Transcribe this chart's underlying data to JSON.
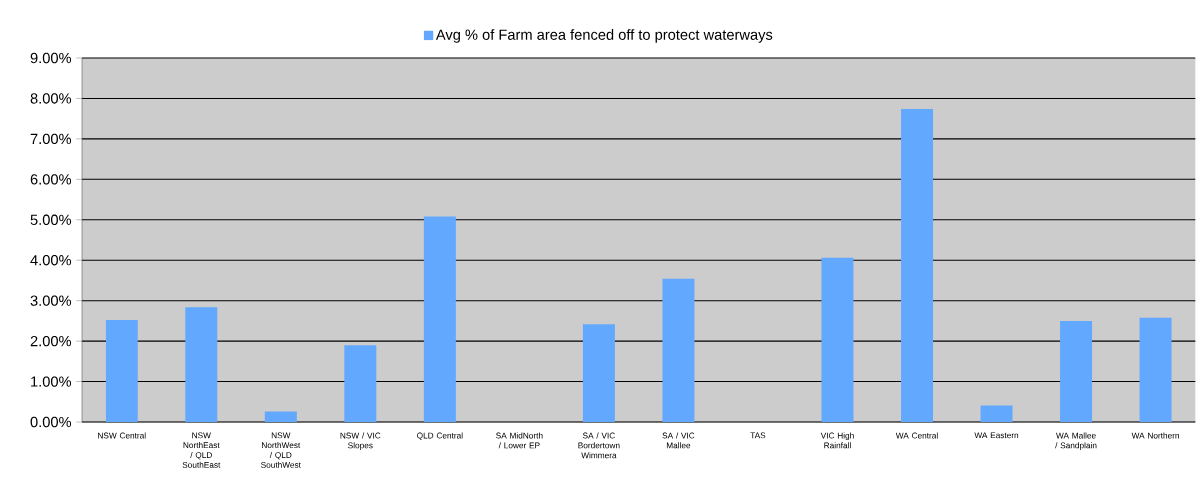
{
  "chart_data": {
    "type": "bar",
    "categories": [
      "NSW Central",
      "NSW NorthEast / QLD SouthEast",
      "NSW NorthWest / QLD SouthWest",
      "NSW / VIC Slopes",
      "QLD Central",
      "SA MidNorth / Lower EP",
      "SA / VIC Bordertown Wimmera",
      "SA / VIC Mallee",
      "TAS",
      "VIC High Rainfall",
      "WA Central",
      "WA Eastern",
      "WA Mallee / Sandplain",
      "WA Northern"
    ],
    "series": [
      {
        "name": "Avg % of Farm area fenced off to protect waterways",
        "color": "#63a8ff",
        "values": [
          2.52,
          2.84,
          0.26,
          1.9,
          5.08,
          0,
          2.42,
          3.54,
          0,
          4.06,
          7.74,
          0.41,
          2.5,
          2.58
        ]
      }
    ],
    "ylim": [
      0,
      9
    ],
    "yticks": [
      {
        "value": 0,
        "label": "0.00%"
      },
      {
        "value": 1,
        "label": "1.00%"
      },
      {
        "value": 2,
        "label": "2.00%"
      },
      {
        "value": 3,
        "label": "3.00%"
      },
      {
        "value": 4,
        "label": "4.00%"
      },
      {
        "value": 5,
        "label": "5.00%"
      },
      {
        "value": 6,
        "label": "6.00%"
      },
      {
        "value": 7,
        "label": "7.00%"
      },
      {
        "value": 8,
        "label": "8.00%"
      },
      {
        "value": 9,
        "label": "9.00%"
      }
    ],
    "grid": "y",
    "legend": "top"
  }
}
